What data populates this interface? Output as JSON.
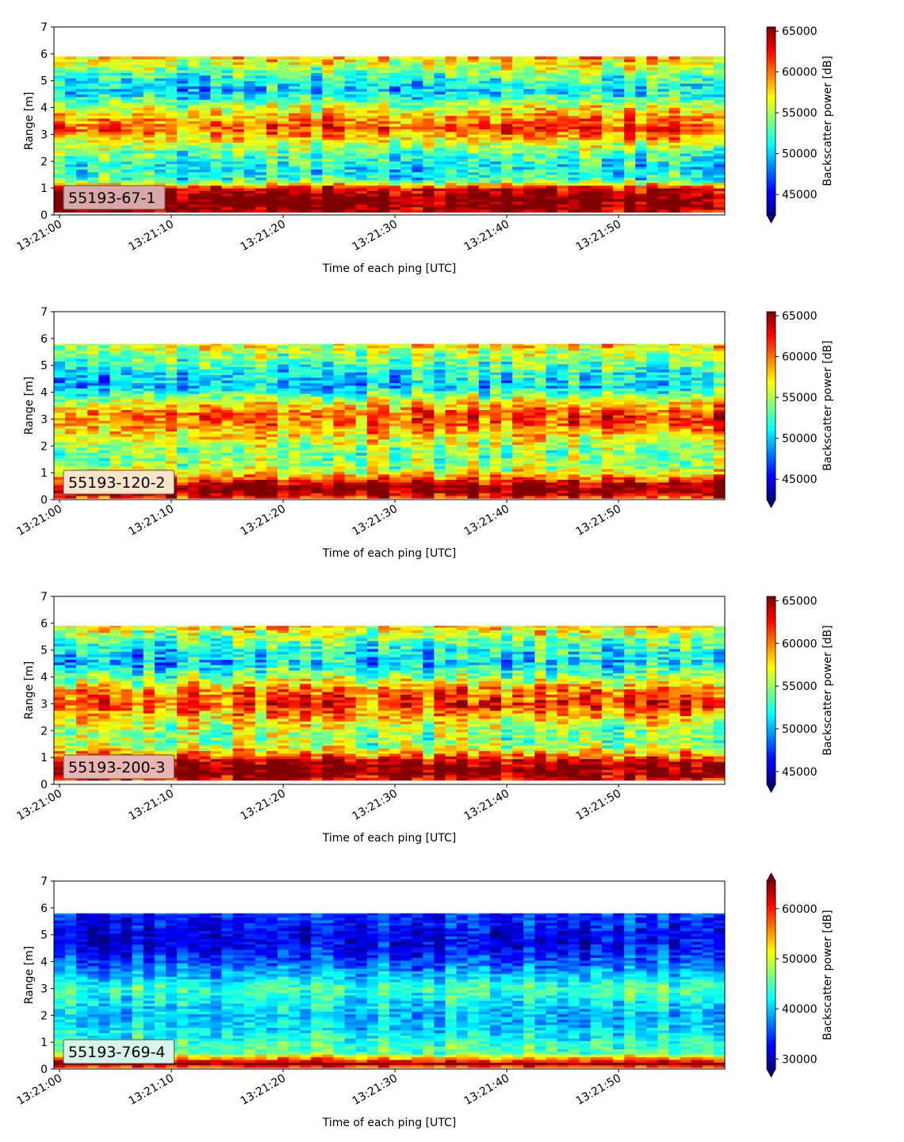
{
  "colors": {
    "colormap": "jet",
    "stops": [
      "#00007f",
      "#0000ff",
      "#007fff",
      "#00ffff",
      "#7fff7f",
      "#ffff00",
      "#ff7f00",
      "#ff0000",
      "#7f0000"
    ],
    "label_box_background": "#ffffff"
  },
  "chart_data": [
    {
      "type": "heatmap",
      "label": "55193-67-1",
      "label_tint": "#d9a7a7",
      "xlabel": "Time of each ping [UTC]",
      "ylabel": "Range [m]",
      "xlim": [
        "13:20:59.5",
        "13:21:59.5"
      ],
      "ylim": [
        0,
        7
      ],
      "x_ticks": [
        "13:21:00",
        "13:21:10",
        "13:21:20",
        "13:21:30",
        "13:21:40",
        "13:21:50"
      ],
      "y_ticks": [
        0,
        1,
        2,
        3,
        4,
        5,
        6,
        7
      ],
      "data_range_m": [
        0.1,
        5.9
      ],
      "colorbar": {
        "label": "Backscatter power [dB]",
        "vmin": 42500,
        "vmax": 65500,
        "ticks": [
          45000,
          50000,
          55000,
          60000,
          65000
        ],
        "extend": "min"
      },
      "profile": [
        {
          "range": 0.1,
          "value": 64000
        },
        {
          "range": 0.3,
          "value": 66000
        },
        {
          "range": 0.7,
          "value": 66000
        },
        {
          "range": 1.0,
          "value": 63000
        },
        {
          "range": 1.3,
          "value": 52000
        },
        {
          "range": 1.8,
          "value": 51000
        },
        {
          "range": 2.3,
          "value": 53000
        },
        {
          "range": 2.8,
          "value": 57000
        },
        {
          "range": 3.2,
          "value": 61000
        },
        {
          "range": 3.6,
          "value": 59000
        },
        {
          "range": 4.1,
          "value": 55000
        },
        {
          "range": 4.6,
          "value": 50000
        },
        {
          "range": 5.1,
          "value": 52000
        },
        {
          "range": 5.6,
          "value": 56000
        },
        {
          "range": 5.9,
          "value": 58000
        }
      ],
      "noise": 5000
    },
    {
      "type": "heatmap",
      "label": "55193-120-2",
      "label_tint": "#fbe3cc",
      "xlabel": "Time of each ping [UTC]",
      "ylabel": "Range [m]",
      "xlim": [
        "13:20:59.5",
        "13:21:59.5"
      ],
      "ylim": [
        0,
        7
      ],
      "x_ticks": [
        "13:21:00",
        "13:21:10",
        "13:21:20",
        "13:21:30",
        "13:21:40",
        "13:21:50"
      ],
      "y_ticks": [
        0,
        1,
        2,
        3,
        4,
        5,
        6,
        7
      ],
      "data_range_m": [
        0.05,
        5.8
      ],
      "colorbar": {
        "label": "Backscatter power [dB]",
        "vmin": 42500,
        "vmax": 65500,
        "ticks": [
          45000,
          50000,
          55000,
          60000,
          65000
        ],
        "extend": "min"
      },
      "profile": [
        {
          "range": 0.05,
          "value": 61000
        },
        {
          "range": 0.3,
          "value": 66000
        },
        {
          "range": 0.55,
          "value": 65000
        },
        {
          "range": 0.8,
          "value": 60000
        },
        {
          "range": 1.2,
          "value": 55000
        },
        {
          "range": 1.8,
          "value": 54000
        },
        {
          "range": 2.3,
          "value": 57000
        },
        {
          "range": 2.8,
          "value": 60000
        },
        {
          "range": 3.2,
          "value": 61000
        },
        {
          "range": 3.7,
          "value": 56000
        },
        {
          "range": 4.2,
          "value": 50000
        },
        {
          "range": 4.7,
          "value": 51000
        },
        {
          "range": 5.2,
          "value": 54000
        },
        {
          "range": 5.8,
          "value": 57000
        }
      ],
      "noise": 5000
    },
    {
      "type": "heatmap",
      "label": "55193-200-3",
      "label_tint": "#e9b5b0",
      "xlabel": "Time of each ping [UTC]",
      "ylabel": "Range [m]",
      "xlim": [
        "13:20:59.5",
        "13:21:59.5"
      ],
      "ylim": [
        0,
        7
      ],
      "x_ticks": [
        "13:21:00",
        "13:21:10",
        "13:21:20",
        "13:21:30",
        "13:21:40",
        "13:21:50"
      ],
      "y_ticks": [
        0,
        1,
        2,
        3,
        4,
        5,
        6,
        7
      ],
      "data_range_m": [
        0.15,
        5.9
      ],
      "colorbar": {
        "label": "Backscatter power [dB]",
        "vmin": 43500,
        "vmax": 65500,
        "ticks": [
          45000,
          50000,
          55000,
          60000,
          65000
        ],
        "extend": "min"
      },
      "profile": [
        {
          "range": 0.15,
          "value": 62000
        },
        {
          "range": 0.4,
          "value": 66000
        },
        {
          "range": 0.8,
          "value": 65000
        },
        {
          "range": 1.1,
          "value": 60000
        },
        {
          "range": 1.5,
          "value": 55000
        },
        {
          "range": 2.0,
          "value": 55000
        },
        {
          "range": 2.5,
          "value": 58000
        },
        {
          "range": 3.0,
          "value": 62000
        },
        {
          "range": 3.5,
          "value": 60000
        },
        {
          "range": 4.0,
          "value": 55000
        },
        {
          "range": 4.5,
          "value": 51000
        },
        {
          "range": 5.0,
          "value": 52000
        },
        {
          "range": 5.5,
          "value": 55000
        },
        {
          "range": 5.9,
          "value": 58000
        }
      ],
      "noise": 5200
    },
    {
      "type": "heatmap",
      "label": "55193-769-4",
      "label_tint": "#d7f4e9",
      "xlabel": "Time of each ping [UTC]",
      "ylabel": "Range [m]",
      "xlim": [
        "13:20:59.5",
        "13:21:59.5"
      ],
      "ylim": [
        0,
        7
      ],
      "x_ticks": [
        "13:21:00",
        "13:21:10",
        "13:21:20",
        "13:21:30",
        "13:21:40",
        "13:21:50"
      ],
      "y_ticks": [
        0,
        1,
        2,
        3,
        4,
        5,
        6,
        7
      ],
      "data_range_m": [
        0.05,
        5.8
      ],
      "colorbar": {
        "label": "Backscatter power [dB]",
        "vmin": 28000,
        "vmax": 65500,
        "ticks": [
          30000,
          40000,
          50000,
          60000
        ],
        "extend": "both"
      },
      "profile": [
        {
          "range": 0.05,
          "value": 55000
        },
        {
          "range": 0.2,
          "value": 66000
        },
        {
          "range": 0.35,
          "value": 58000
        },
        {
          "range": 0.6,
          "value": 46000
        },
        {
          "range": 1.0,
          "value": 44000
        },
        {
          "range": 1.5,
          "value": 41000
        },
        {
          "range": 2.0,
          "value": 40000
        },
        {
          "range": 2.5,
          "value": 42000
        },
        {
          "range": 3.0,
          "value": 45000
        },
        {
          "range": 3.5,
          "value": 40000
        },
        {
          "range": 4.0,
          "value": 36000
        },
        {
          "range": 4.5,
          "value": 33000
        },
        {
          "range": 5.0,
          "value": 32000
        },
        {
          "range": 5.5,
          "value": 34000
        },
        {
          "range": 5.8,
          "value": 35000
        }
      ],
      "noise": 5500
    }
  ]
}
